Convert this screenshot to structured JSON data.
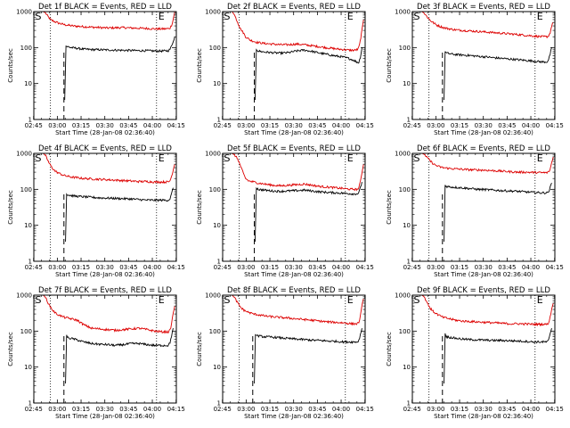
{
  "chart_data": {
    "type": "line",
    "figure_title": "",
    "ylabel": "Counts/sec",
    "xlabel": "Start Time (28-Jan-08 02:36:40)",
    "yscale": "log",
    "ylim": [
      1,
      1000
    ],
    "y_ticks": [
      1,
      10,
      100,
      1000
    ],
    "y_tick_labels": [
      "1",
      "10",
      "100",
      "1000"
    ],
    "xlim": [
      8.5,
      98.5
    ],
    "x_ticks": [
      8.33,
      23.33,
      38.33,
      53.33,
      68.33,
      83.33,
      98.33
    ],
    "x_tick_labels": [
      "02:45",
      "03:00",
      "03:15",
      "03:30",
      "03:45",
      "04:00",
      "04:15"
    ],
    "x_units": "minutes after start time",
    "series_colors": {
      "events": "#000000",
      "lld": "#dd0000"
    },
    "start_marker": "S",
    "end_marker": "E",
    "panels": [
      {
        "title": "Det 1f BLACK = Events, RED = LLD",
        "dotted_lines": [
          19,
          86
        ],
        "dashed_line": 27.5,
        "lld": {
          "x": [
            8.5,
            12,
            14.5,
            16,
            17.5,
            19,
            21,
            24,
            28,
            33,
            40,
            45,
            50,
            55,
            60,
            64,
            70,
            75,
            80,
            85,
            90,
            93.5,
            94.5,
            95.5,
            96.5,
            97.5,
            98.5
          ],
          "y": [
            1000,
            1000,
            1000,
            900,
            720,
            600,
            540,
            480,
            430,
            400,
            380,
            370,
            360,
            350,
            355,
            360,
            350,
            345,
            340,
            330,
            330,
            335,
            350,
            420,
            600,
            1000,
            1000
          ]
        },
        "events": {
          "x": [
            28,
            28.8,
            30,
            32,
            36,
            40,
            45,
            50,
            55,
            60,
            65,
            70,
            75,
            80,
            85,
            90,
            93.5,
            94.5,
            95.5,
            96.5,
            97.5
          ],
          "y": [
            3.5,
            110,
            105,
            100,
            95,
            90,
            88,
            87,
            86,
            85,
            84,
            83,
            82,
            82,
            80,
            80,
            82,
            90,
            110,
            150,
            200
          ]
        }
      },
      {
        "title": "Det 2f BLACK = Events, RED = LLD",
        "dotted_lines": [
          19,
          86
        ],
        "dashed_line": 28.5,
        "lld": {
          "x": [
            8.5,
            12,
            14.5,
            16,
            18,
            20,
            21.5,
            23,
            26,
            30,
            35,
            40,
            45,
            50,
            55,
            60,
            65,
            70,
            75,
            80,
            85,
            88,
            90,
            92.5,
            94,
            95,
            96.5,
            97.5
          ],
          "y": [
            1000,
            1000,
            1000,
            800,
            500,
            320,
            260,
            200,
            160,
            140,
            130,
            125,
            120,
            120,
            125,
            120,
            112,
            105,
            98,
            92,
            88,
            85,
            84,
            85,
            90,
            120,
            300,
            600
          ]
        },
        "events": {
          "x": [
            29,
            29.8,
            31,
            35,
            40,
            45,
            50,
            55,
            60,
            65,
            70,
            75,
            80,
            84,
            88,
            91,
            93,
            94.5,
            95.5,
            96.5
          ],
          "y": [
            3.5,
            90,
            80,
            75,
            72,
            70,
            72,
            80,
            85,
            78,
            70,
            64,
            58,
            55,
            50,
            45,
            40,
            38,
            55,
            100
          ]
        }
      },
      {
        "title": "Det 3f BLACK = Events, RED = LLD",
        "dotted_lines": [
          19,
          86
        ],
        "dashed_line": 27.5,
        "lld": {
          "x": [
            8.5,
            12,
            14.5,
            16,
            18,
            20,
            22,
            24,
            28,
            32,
            36,
            40,
            45,
            50,
            55,
            60,
            65,
            70,
            75,
            80,
            85,
            90,
            93.5,
            94.5,
            95.5,
            96.5,
            97.5
          ],
          "y": [
            1000,
            1000,
            1000,
            900,
            700,
            560,
            480,
            420,
            360,
            330,
            310,
            300,
            290,
            280,
            270,
            260,
            250,
            240,
            230,
            220,
            210,
            200,
            200,
            210,
            260,
            400,
            500
          ]
        },
        "events": {
          "x": [
            28.5,
            29.2,
            30,
            34,
            40,
            45,
            50,
            55,
            60,
            65,
            70,
            75,
            80,
            85,
            90,
            93.5,
            94.5,
            95.5,
            96.5
          ],
          "y": [
            3.5,
            80,
            70,
            65,
            62,
            60,
            57,
            55,
            52,
            50,
            48,
            46,
            44,
            42,
            40,
            40,
            45,
            65,
            100
          ]
        }
      },
      {
        "title": "Det 4f BLACK = Events, RED = LLD",
        "dotted_lines": [
          19,
          86
        ],
        "dashed_line": 27.5,
        "lld": {
          "x": [
            8.5,
            12,
            14.5,
            16,
            18,
            20,
            22,
            25,
            28,
            32,
            36,
            40,
            45,
            50,
            55,
            60,
            65,
            70,
            75,
            80,
            85,
            90,
            93.5,
            94.5,
            95.5,
            96.5,
            97.5
          ],
          "y": [
            1000,
            1000,
            1000,
            850,
            550,
            400,
            320,
            270,
            240,
            220,
            210,
            200,
            195,
            190,
            185,
            180,
            175,
            170,
            165,
            165,
            160,
            160,
            160,
            175,
            230,
            350,
            500
          ]
        },
        "events": {
          "x": [
            28.5,
            29.2,
            30,
            34,
            40,
            45,
            50,
            55,
            60,
            65,
            70,
            75,
            80,
            85,
            90,
            93.5,
            94.5,
            95.5,
            96.5
          ],
          "y": [
            3.5,
            75,
            70,
            65,
            62,
            60,
            58,
            57,
            56,
            55,
            54,
            52,
            50,
            50,
            50,
            50,
            55,
            75,
            110
          ]
        }
      },
      {
        "title": "Det 5f BLACK = Events, RED = LLD",
        "dotted_lines": [
          19,
          86
        ],
        "dashed_line": 28.5,
        "lld": {
          "x": [
            8.5,
            12,
            14.5,
            16,
            18,
            20,
            21.5,
            23,
            25,
            28,
            31,
            35,
            40,
            45,
            50,
            55,
            60,
            65,
            70,
            75,
            80,
            85,
            90,
            93.5,
            94.5,
            95.5,
            96.5,
            97.5
          ],
          "y": [
            1000,
            1000,
            1000,
            900,
            700,
            420,
            280,
            200,
            170,
            160,
            150,
            140,
            130,
            125,
            130,
            135,
            140,
            130,
            120,
            115,
            110,
            105,
            100,
            100,
            110,
            160,
            300,
            500
          ]
        },
        "events": {
          "x": [
            29,
            29.8,
            31,
            35,
            40,
            45,
            50,
            55,
            60,
            65,
            70,
            75,
            80,
            85,
            90,
            93.5,
            94.5,
            95.5,
            96.5
          ],
          "y": [
            3.5,
            110,
            100,
            95,
            90,
            88,
            90,
            92,
            95,
            90,
            85,
            82,
            80,
            78,
            75,
            75,
            80,
            110,
            160
          ]
        }
      },
      {
        "title": "Det 6f BLACK = Events, RED = LLD",
        "dotted_lines": [
          19,
          86
        ],
        "dashed_line": 27.5,
        "lld": {
          "x": [
            8.5,
            12,
            14.5,
            16,
            18,
            20,
            22,
            25,
            28,
            32,
            36,
            40,
            45,
            50,
            55,
            60,
            65,
            70,
            75,
            80,
            85,
            90,
            93.5,
            94.5,
            95.5,
            96.5,
            97.5
          ],
          "y": [
            1000,
            1000,
            1000,
            950,
            750,
            600,
            500,
            430,
            400,
            380,
            370,
            360,
            350,
            345,
            340,
            330,
            320,
            310,
            300,
            300,
            295,
            290,
            290,
            300,
            360,
            550,
            800
          ]
        },
        "events": {
          "x": [
            28.5,
            29.2,
            30,
            34,
            40,
            45,
            50,
            55,
            60,
            65,
            70,
            75,
            80,
            85,
            90,
            93.5,
            94.5,
            95.5,
            96.5
          ],
          "y": [
            3.5,
            130,
            120,
            115,
            110,
            105,
            100,
            98,
            95,
            92,
            90,
            88,
            85,
            82,
            80,
            80,
            85,
            110,
            150
          ]
        }
      },
      {
        "title": "Det 7f BLACK = Events, RED = LLD",
        "dotted_lines": [
          19,
          86
        ],
        "dashed_line": 27.5,
        "lld": {
          "x": [
            8.5,
            12,
            14.5,
            16,
            18,
            20,
            22,
            25,
            28,
            32,
            36,
            40,
            45,
            50,
            55,
            60,
            65,
            70,
            75,
            80,
            85,
            90,
            93.5,
            94.5,
            95.5,
            96.5,
            97.5
          ],
          "y": [
            1000,
            1000,
            1000,
            850,
            550,
            400,
            320,
            270,
            240,
            220,
            200,
            150,
            120,
            115,
            110,
            105,
            110,
            115,
            120,
            110,
            100,
            95,
            95,
            105,
            160,
            320,
            500
          ]
        },
        "events": {
          "x": [
            28.5,
            29.2,
            30,
            34,
            40,
            45,
            50,
            55,
            60,
            65,
            70,
            75,
            80,
            85,
            90,
            93.5,
            94.5,
            95.5,
            96.5
          ],
          "y": [
            3.5,
            75,
            65,
            60,
            50,
            45,
            43,
            42,
            40,
            42,
            45,
            45,
            42,
            40,
            40,
            40,
            48,
            75,
            120
          ]
        }
      },
      {
        "title": "Det 8f BLACK = Events, RED = LLD",
        "dotted_lines": [
          19,
          86
        ],
        "dashed_line": 27.5,
        "lld": {
          "x": [
            8.5,
            12,
            14.5,
            16,
            18,
            20,
            22,
            25,
            28,
            32,
            36,
            40,
            45,
            50,
            55,
            60,
            65,
            70,
            75,
            80,
            85,
            90,
            93.5,
            94.5,
            95.5,
            96.5,
            97.5
          ],
          "y": [
            1000,
            1000,
            1000,
            850,
            600,
            450,
            380,
            330,
            300,
            280,
            260,
            250,
            240,
            230,
            220,
            210,
            200,
            190,
            180,
            175,
            170,
            160,
            160,
            175,
            260,
            500,
            800
          ]
        },
        "events": {
          "x": [
            28.5,
            29.2,
            30,
            34,
            40,
            45,
            50,
            55,
            60,
            65,
            70,
            75,
            80,
            85,
            90,
            93.5,
            94.5,
            95.5,
            96.5
          ],
          "y": [
            3.5,
            85,
            75,
            70,
            68,
            65,
            62,
            60,
            58,
            56,
            55,
            53,
            52,
            50,
            50,
            50,
            55,
            80,
            120
          ]
        }
      },
      {
        "title": "Det 9f BLACK = Events, RED = LLD",
        "dotted_lines": [
          19,
          86
        ],
        "dashed_line": 27.5,
        "lld": {
          "x": [
            8.5,
            12,
            14.5,
            16,
            18,
            20,
            22,
            25,
            28,
            32,
            36,
            40,
            45,
            50,
            55,
            60,
            65,
            70,
            75,
            80,
            85,
            90,
            93.5,
            94.5,
            95.5,
            96.5,
            97.5
          ],
          "y": [
            1000,
            1000,
            1000,
            900,
            600,
            420,
            340,
            280,
            240,
            220,
            200,
            190,
            185,
            180,
            175,
            170,
            165,
            160,
            160,
            158,
            155,
            155,
            155,
            170,
            240,
            420,
            600
          ]
        },
        "events": {
          "x": [
            28.5,
            29.2,
            30,
            34,
            40,
            45,
            50,
            55,
            60,
            65,
            70,
            75,
            80,
            85,
            90,
            93.5,
            94.5,
            95.5,
            96.5
          ],
          "y": [
            3.5,
            85,
            70,
            65,
            60,
            58,
            57,
            56,
            55,
            55,
            54,
            53,
            52,
            50,
            50,
            50,
            55,
            80,
            120
          ]
        }
      }
    ]
  }
}
